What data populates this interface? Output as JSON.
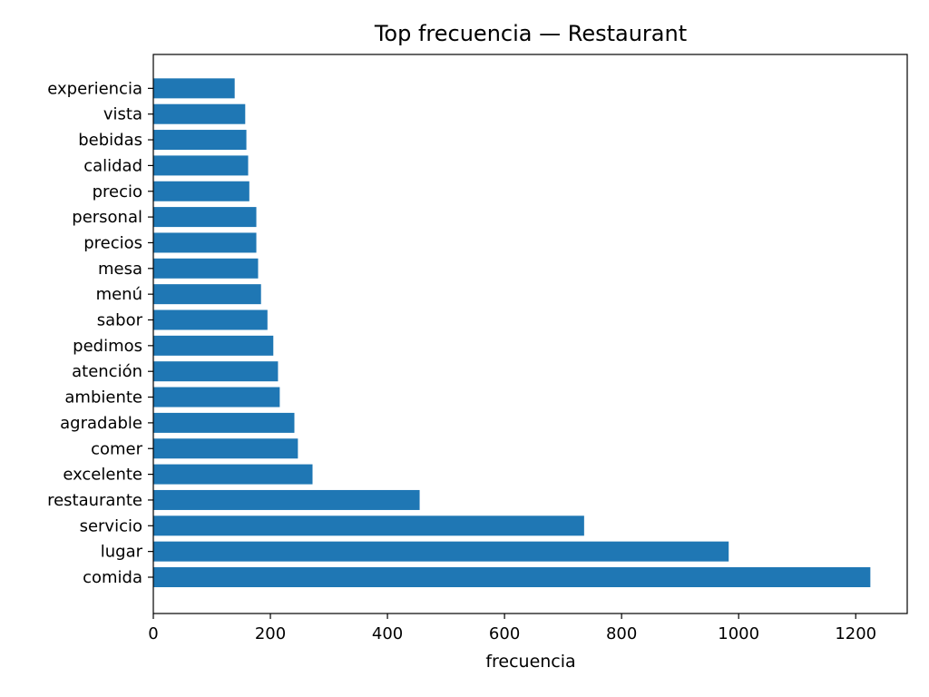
{
  "chart_data": {
    "type": "bar",
    "orientation": "horizontal",
    "title": "Top frecuencia — Restaurant",
    "xlabel": "frecuencia",
    "ylabel": "",
    "categories": [
      "comida",
      "lugar",
      "servicio",
      "restaurante",
      "excelente",
      "comer",
      "agradable",
      "ambiente",
      "atención",
      "pedimos",
      "sabor",
      "menú",
      "mesa",
      "precios",
      "personal",
      "precio",
      "calidad",
      "bebidas",
      "vista",
      "experiencia"
    ],
    "values": [
      1225,
      983,
      736,
      455,
      272,
      247,
      241,
      216,
      213,
      205,
      195,
      184,
      179,
      176,
      176,
      164,
      162,
      159,
      157,
      139
    ],
    "xlim": [
      0,
      1288
    ],
    "xticks": [
      0,
      200,
      400,
      600,
      800,
      1000,
      1200
    ],
    "grid": false,
    "bar_color": "#1f77b4"
  }
}
